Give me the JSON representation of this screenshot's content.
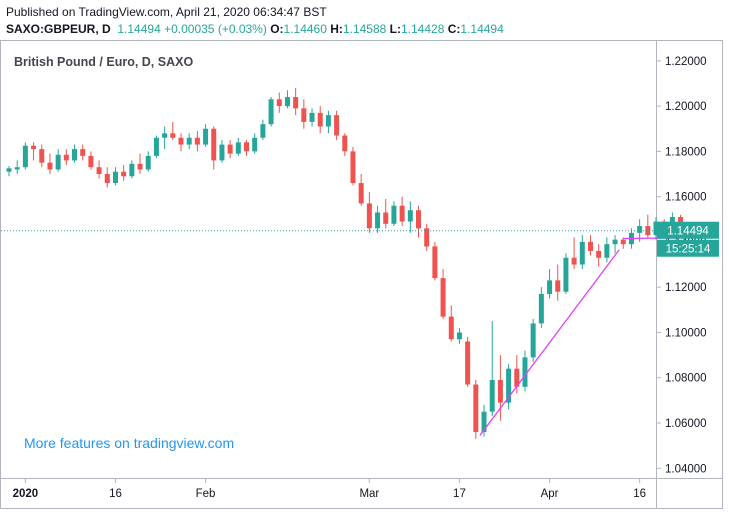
{
  "header": {
    "published": "Published on TradingView.com, April 21, 2020 06:34:47 BST",
    "symbol": "SAXO:GBPEUR, D",
    "last": "1.14494",
    "change": "+0.00035 (+0.03%)",
    "o_label": "O:",
    "o": "1.14460",
    "h_label": "H:",
    "h": "1.14588",
    "l_label": "L:",
    "l": "1.14428",
    "c_label": "C:",
    "c": "1.14494"
  },
  "legend_title": "British Pound / Euro, D, SAXO",
  "watermark": "More features on tradingview.com",
  "price_badge": {
    "value": "1.14494",
    "color": "#26a69a"
  },
  "countdown_badge": {
    "value": "15:25:14",
    "color": "#26a69a"
  },
  "colors": {
    "up": "#26a69a",
    "down": "#ef5350",
    "trendline": "#e040fb",
    "axis_text": "#131722"
  },
  "chart_data": {
    "type": "candlestick",
    "title": "British Pound / Euro, D, SAXO",
    "ylim": [
      1.0357,
      1.2292
    ],
    "y_ticks": [
      "1.22000",
      "1.20000",
      "1.18000",
      "1.16000",
      "1.14000",
      "1.12000",
      "1.10000",
      "1.08000",
      "1.06000",
      "1.04000"
    ],
    "x_ticks": [
      {
        "label": "2020",
        "index": 2,
        "bold": true
      },
      {
        "label": "16",
        "index": 13
      },
      {
        "label": "Feb",
        "index": 24
      },
      {
        "label": "Mar",
        "index": 44
      },
      {
        "label": "17",
        "index": 55
      },
      {
        "label": "Apr",
        "index": 66
      },
      {
        "label": "16",
        "index": 77
      }
    ],
    "candles": [
      [
        1.171,
        1.1735,
        1.169,
        1.1725
      ],
      [
        1.172,
        1.176,
        1.17,
        1.173
      ],
      [
        1.173,
        1.184,
        1.172,
        1.1825
      ],
      [
        1.1825,
        1.184,
        1.176,
        1.181
      ],
      [
        1.181,
        1.183,
        1.173,
        1.175
      ],
      [
        1.175,
        1.179,
        1.17,
        1.172
      ],
      [
        1.172,
        1.181,
        1.171,
        1.1785
      ],
      [
        1.1785,
        1.181,
        1.174,
        1.176
      ],
      [
        1.176,
        1.183,
        1.175,
        1.181
      ],
      [
        1.181,
        1.183,
        1.176,
        1.178
      ],
      [
        1.178,
        1.18,
        1.172,
        1.173
      ],
      [
        1.173,
        1.176,
        1.168,
        1.17
      ],
      [
        1.17,
        1.173,
        1.164,
        1.166
      ],
      [
        1.166,
        1.173,
        1.165,
        1.171
      ],
      [
        1.171,
        1.174,
        1.167,
        1.169
      ],
      [
        1.169,
        1.176,
        1.168,
        1.1745
      ],
      [
        1.1745,
        1.179,
        1.17,
        1.172
      ],
      [
        1.172,
        1.18,
        1.171,
        1.178
      ],
      [
        1.178,
        1.187,
        1.177,
        1.186
      ],
      [
        1.186,
        1.191,
        1.181,
        1.188
      ],
      [
        1.188,
        1.193,
        1.185,
        1.186
      ],
      [
        1.186,
        1.188,
        1.18,
        1.183
      ],
      [
        1.183,
        1.188,
        1.181,
        1.186
      ],
      [
        1.186,
        1.189,
        1.18,
        1.183
      ],
      [
        1.183,
        1.192,
        1.182,
        1.19
      ],
      [
        1.19,
        1.191,
        1.172,
        1.176
      ],
      [
        1.176,
        1.185,
        1.175,
        1.183
      ],
      [
        1.183,
        1.185,
        1.177,
        1.179
      ],
      [
        1.179,
        1.186,
        1.178,
        1.184
      ],
      [
        1.184,
        1.185,
        1.178,
        1.18
      ],
      [
        1.18,
        1.188,
        1.179,
        1.186
      ],
      [
        1.186,
        1.194,
        1.185,
        1.192
      ],
      [
        1.192,
        1.204,
        1.191,
        1.203
      ],
      [
        1.203,
        1.206,
        1.197,
        1.2
      ],
      [
        1.2,
        1.207,
        1.199,
        1.204
      ],
      [
        1.204,
        1.208,
        1.196,
        1.199
      ],
      [
        1.199,
        1.203,
        1.19,
        1.193
      ],
      [
        1.193,
        1.199,
        1.191,
        1.197
      ],
      [
        1.197,
        1.2,
        1.188,
        1.191
      ],
      [
        1.191,
        1.198,
        1.188,
        1.196
      ],
      [
        1.196,
        1.198,
        1.185,
        1.187
      ],
      [
        1.187,
        1.188,
        1.178,
        1.18
      ],
      [
        1.18,
        1.182,
        1.165,
        1.166
      ],
      [
        1.166,
        1.17,
        1.156,
        1.157
      ],
      [
        1.157,
        1.162,
        1.144,
        1.146
      ],
      [
        1.146,
        1.156,
        1.144,
        1.153
      ],
      [
        1.153,
        1.159,
        1.146,
        1.148
      ],
      [
        1.148,
        1.158,
        1.147,
        1.156
      ],
      [
        1.156,
        1.16,
        1.147,
        1.149
      ],
      [
        1.149,
        1.158,
        1.144,
        1.154
      ],
      [
        1.154,
        1.156,
        1.142,
        1.146
      ],
      [
        1.146,
        1.148,
        1.136,
        1.138
      ],
      [
        1.138,
        1.14,
        1.123,
        1.124
      ],
      [
        1.124,
        1.128,
        1.106,
        1.107
      ],
      [
        1.107,
        1.112,
        1.096,
        1.097
      ],
      [
        1.097,
        1.102,
        1.095,
        1.1
      ],
      [
        1.096,
        1.098,
        1.076,
        1.077
      ],
      [
        1.077,
        1.079,
        1.053,
        1.056
      ],
      [
        1.056,
        1.068,
        1.054,
        1.065
      ],
      [
        1.065,
        1.105,
        1.063,
        1.079
      ],
      [
        1.079,
        1.09,
        1.061,
        1.069
      ],
      [
        1.069,
        1.086,
        1.066,
        1.084
      ],
      [
        1.084,
        1.09,
        1.073,
        1.076
      ],
      [
        1.076,
        1.092,
        1.074,
        1.089
      ],
      [
        1.089,
        1.106,
        1.087,
        1.104
      ],
      [
        1.104,
        1.12,
        1.102,
        1.117
      ],
      [
        1.117,
        1.128,
        1.115,
        1.123
      ],
      [
        1.123,
        1.13,
        1.114,
        1.118
      ],
      [
        1.118,
        1.135,
        1.117,
        1.133
      ],
      [
        1.133,
        1.142,
        1.128,
        1.13
      ],
      [
        1.13,
        1.143,
        1.128,
        1.14
      ],
      [
        1.14,
        1.143,
        1.134,
        1.136
      ],
      [
        1.136,
        1.139,
        1.129,
        1.133
      ],
      [
        1.133,
        1.142,
        1.131,
        1.139
      ],
      [
        1.139,
        1.143,
        1.135,
        1.141
      ],
      [
        1.141,
        1.142,
        1.137,
        1.139
      ],
      [
        1.139,
        1.146,
        1.137,
        1.144
      ],
      [
        1.144,
        1.15,
        1.14,
        1.147
      ],
      [
        1.147,
        1.152,
        1.142,
        1.143
      ],
      [
        1.143,
        1.151,
        1.141,
        1.149
      ],
      [
        1.149,
        1.15,
        1.144,
        1.147
      ],
      [
        1.147,
        1.153,
        1.144,
        1.151
      ],
      [
        1.151,
        1.152,
        1.145,
        1.1459
      ],
      [
        1.1446,
        1.1459,
        1.1443,
        1.1449
      ]
    ],
    "last_price_line": 1.14494,
    "trendlines": [
      {
        "from": {
          "index": 57.5,
          "price": 1.0545
        },
        "to": {
          "index": 74.5,
          "price": 1.1365
        }
      },
      {
        "from": {
          "index": 75,
          "price": 1.1415
        },
        "to": {
          "index": 82.5,
          "price": 1.1418
        }
      }
    ]
  }
}
